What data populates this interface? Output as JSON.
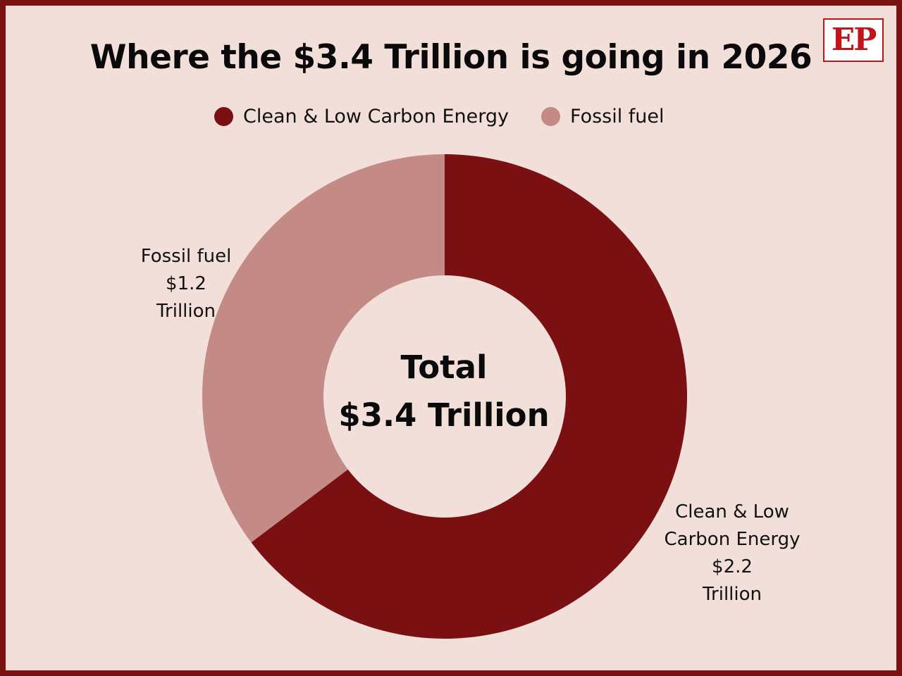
{
  "title": "Where the $3.4 Trillion is going in 2026",
  "logo_text": "EP",
  "colors": {
    "frame": "#7a1212",
    "background": "#f3dfda",
    "clean": "#7a1012",
    "fossil": "#c38a86",
    "logo": "#c0161b"
  },
  "legend": [
    {
      "label": "Clean & Low Carbon Energy",
      "color": "#7a1012"
    },
    {
      "label": "Fossil fuel",
      "color": "#c38a86"
    }
  ],
  "center_label": {
    "line1": "Total",
    "line2": "$3.4 Trillion"
  },
  "slice_labels": {
    "fossil": [
      "Fossil fuel",
      "$1.2",
      "Trillion"
    ],
    "clean": [
      "Clean & Low",
      "Carbon Energy",
      "$2.2",
      "Trillion"
    ]
  },
  "chart_data": {
    "type": "pie",
    "variant": "donut",
    "title": "Where the $3.4 Trillion is going in 2026",
    "unit": "Trillion",
    "total": 3.4,
    "categories": [
      "Clean & Low Carbon Energy",
      "Fossil fuel"
    ],
    "values": [
      2.2,
      1.2
    ],
    "colors": [
      "#7a1012",
      "#c38a86"
    ],
    "legend_position": "top"
  }
}
